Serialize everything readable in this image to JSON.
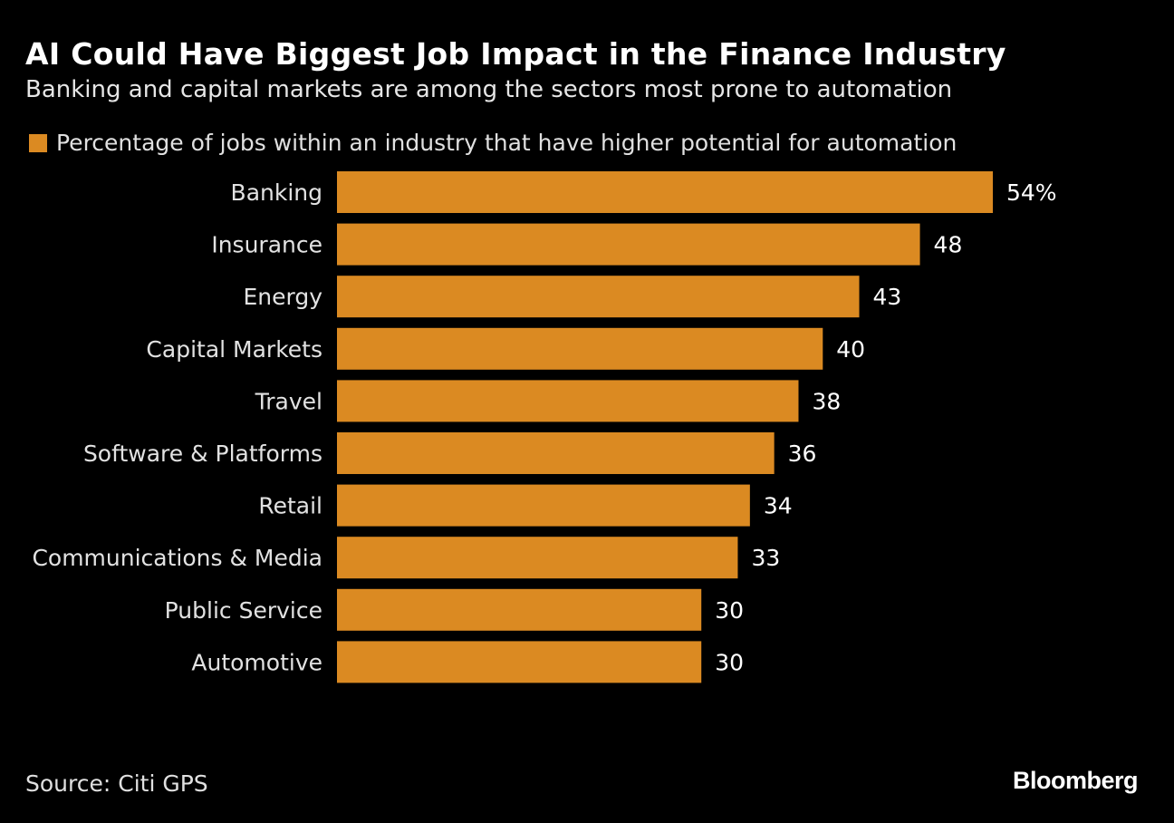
{
  "chart_data": {
    "type": "bar",
    "orientation": "horizontal",
    "title": "AI Could Have Biggest Job Impact in the Finance Industry",
    "subtitle": "Banking and capital markets are among the sectors most prone to automation",
    "categories": [
      "Banking",
      "Insurance",
      "Energy",
      "Capital Markets",
      "Travel",
      "Software & Platforms",
      "Retail",
      "Communications & Media",
      "Public Service",
      "Automotive"
    ],
    "series": [
      {
        "name": "Percentage of jobs within an industry that have higher potential for automation",
        "values": [
          54,
          48,
          43,
          40,
          38,
          36,
          34,
          33,
          30,
          30
        ],
        "color": "#DB8A22"
      }
    ],
    "value_labels": [
      "54%",
      "48",
      "43",
      "40",
      "38",
      "36",
      "34",
      "33",
      "30",
      "30"
    ],
    "xlim": [
      0,
      54
    ],
    "grid": false,
    "legend": "top-left",
    "source": "Source: Citi GPS",
    "brand": "Bloomberg"
  }
}
